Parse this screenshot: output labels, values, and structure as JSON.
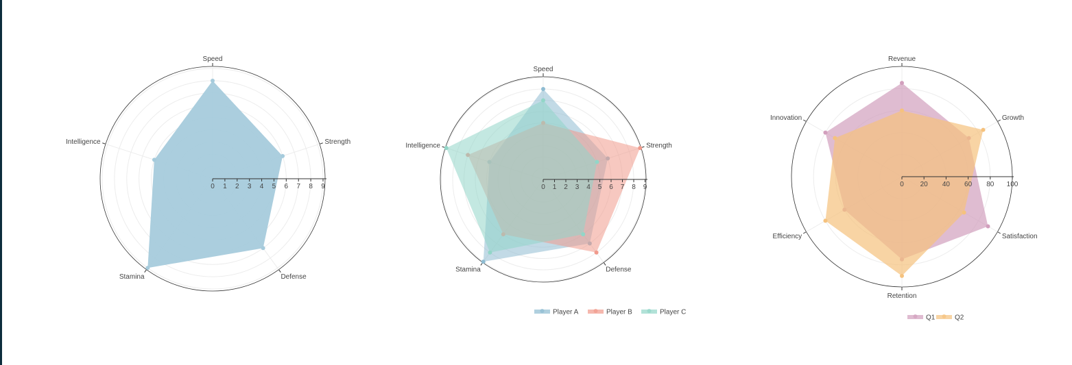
{
  "chart_data": [
    {
      "type": "radar",
      "axes": [
        "Speed",
        "Strength",
        "Defense",
        "Stamina",
        "Intelligence"
      ],
      "radial_ticks": [
        "0",
        "1",
        "2",
        "3",
        "4",
        "5",
        "6",
        "7",
        "8",
        "9"
      ],
      "range": [
        0,
        9
      ],
      "grid": true,
      "legend": "none",
      "series": [
        {
          "values": [
            8,
            6,
            7,
            9,
            5
          ],
          "color": "#a6cbdc"
        }
      ]
    },
    {
      "type": "radar",
      "axes": [
        "Speed",
        "Strength",
        "Defense",
        "Stamina",
        "Intelligence"
      ],
      "radial_ticks": [
        "0",
        "1",
        "2",
        "3",
        "4",
        "5",
        "6",
        "7",
        "8",
        "9"
      ],
      "range": [
        0,
        9
      ],
      "grid": true,
      "legend": "bottom",
      "series": [
        {
          "name": "Player A",
          "values": [
            8,
            6,
            7,
            9,
            5
          ],
          "color": "#8fbcd2"
        },
        {
          "name": "Player B",
          "values": [
            5,
            9,
            8,
            6,
            7
          ],
          "color": "#f19a8c"
        },
        {
          "name": "Player C",
          "values": [
            7,
            5,
            6,
            8,
            9
          ],
          "color": "#92d6c8"
        }
      ]
    },
    {
      "type": "radar",
      "axes": [
        "Revenue",
        "Growth",
        "Satisfaction",
        "Retention",
        "Efficiency",
        "Innovation"
      ],
      "radial_ticks": [
        "0",
        "20",
        "40",
        "60",
        "80",
        "100"
      ],
      "range": [
        0,
        100
      ],
      "grid": true,
      "legend": "bottom",
      "series": [
        {
          "name": "Q1",
          "values": [
            85,
            70,
            90,
            75,
            60,
            80
          ],
          "color": "#d29fbd"
        },
        {
          "name": "Q2",
          "values": [
            60,
            85,
            65,
            90,
            80,
            70
          ],
          "color": "#f5c27e"
        }
      ]
    }
  ]
}
